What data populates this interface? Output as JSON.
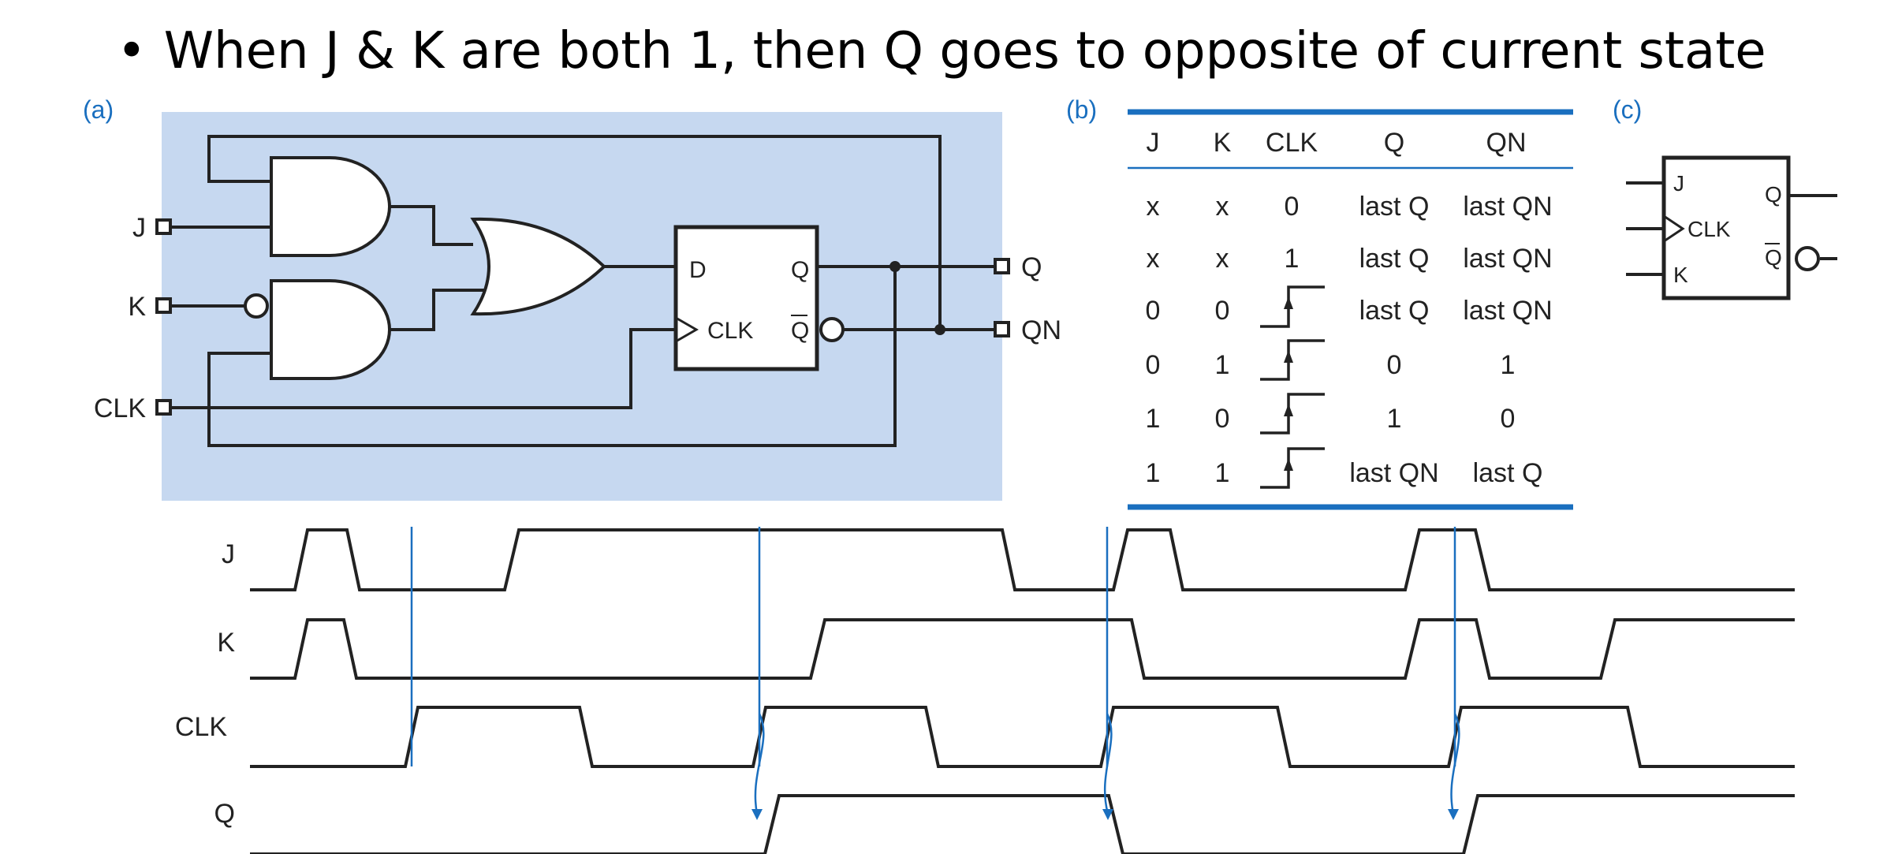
{
  "slide": {
    "bullet": "•",
    "bullet_text": "When J & K are both 1, then Q goes to opposite of current state"
  },
  "panel_a": {
    "label": "(a)",
    "inputs": {
      "j": "J",
      "k": "K",
      "clk": "CLK"
    },
    "outputs": {
      "q": "Q",
      "qn": "QN"
    },
    "dff": {
      "d": "D",
      "q": "Q",
      "clk": "CLK",
      "qbar": "Q"
    }
  },
  "panel_b": {
    "label": "(b)",
    "headers": [
      "J",
      "K",
      "CLK",
      "Q",
      "QN"
    ],
    "rows": [
      {
        "j": "x",
        "k": "x",
        "clk": "0",
        "q": "last Q",
        "qn": "last QN"
      },
      {
        "j": "x",
        "k": "x",
        "clk": "1",
        "q": "last Q",
        "qn": "last QN"
      },
      {
        "j": "0",
        "k": "0",
        "clk": "rising-edge-icon",
        "q": "last Q",
        "qn": "last QN"
      },
      {
        "j": "0",
        "k": "1",
        "clk": "rising-edge-icon",
        "q": "0",
        "qn": "1"
      },
      {
        "j": "1",
        "k": "0",
        "clk": "rising-edge-icon",
        "q": "1",
        "qn": "0"
      },
      {
        "j": "1",
        "k": "1",
        "clk": "rising-edge-icon",
        "q": "last QN",
        "qn": "last Q"
      }
    ]
  },
  "panel_c": {
    "label": "(c)",
    "pins": {
      "j": "J",
      "clk": "CLK",
      "k": "K",
      "q": "Q",
      "qbar": "Q"
    }
  },
  "timing": {
    "signals": [
      "J",
      "K",
      "CLK",
      "Q"
    ]
  },
  "colors": {
    "panel_bg": "#c6d8f0",
    "accent_blue": "#1a6fbf",
    "line": "#222222"
  }
}
